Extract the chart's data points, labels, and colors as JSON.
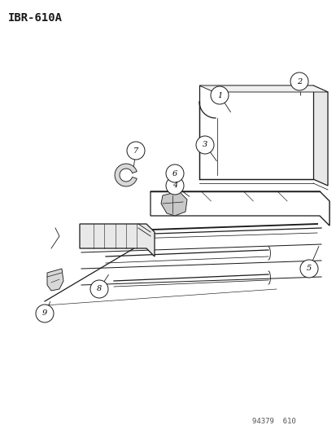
{
  "title_label": "IBR-610A",
  "footer_label": "94379  610",
  "bg_color": "#ffffff",
  "line_color": "#1a1a1a",
  "title_fontsize": 10,
  "footer_fontsize": 6.5,
  "callout_fontsize": 7
}
